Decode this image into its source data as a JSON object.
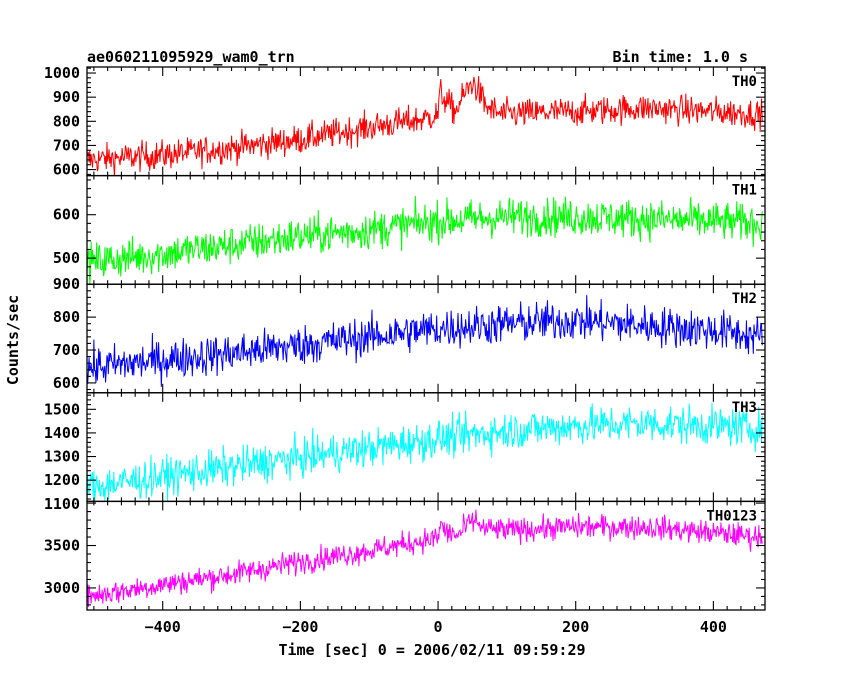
{
  "chart_data": {
    "type": "line",
    "title": "ae060211095929_wam0_trn",
    "subtitle": "Bin time: 1.0 s",
    "xlabel": "Time [sec] 0 = 2006/02/11 09:59:29",
    "ylabel": "Counts/sec",
    "xlim": [
      -510,
      475
    ],
    "x_ticks": [
      -400,
      -200,
      0,
      200,
      400
    ],
    "x_tick_labels": [
      "−400",
      "−200",
      "0",
      "200",
      "400"
    ],
    "bin_time": 1.0,
    "grid": false,
    "panels": [
      {
        "name": "TH0",
        "color": "#ff0000",
        "ylim": [
          575,
          1025
        ],
        "yticks": [
          600,
          700,
          800,
          900,
          1000
        ],
        "ytick_labels": [
          "600",
          "700",
          "800",
          "900",
          "1000"
        ],
        "noise": 30,
        "trend": [
          [
            -510,
            640
          ],
          [
            -400,
            660
          ],
          [
            -300,
            690
          ],
          [
            -200,
            725
          ],
          [
            -100,
            775
          ],
          [
            -20,
            810
          ],
          [
            0,
            830
          ],
          [
            3,
            920
          ],
          [
            10,
            890
          ],
          [
            25,
            840
          ],
          [
            40,
            920
          ],
          [
            50,
            960
          ],
          [
            58,
            930
          ],
          [
            70,
            860
          ],
          [
            90,
            830
          ],
          [
            200,
            840
          ],
          [
            300,
            855
          ],
          [
            400,
            840
          ],
          [
            470,
            830
          ]
        ]
      },
      {
        "name": "TH1",
        "color": "#00ff00",
        "ylim": [
          440,
          690
        ],
        "yticks": [
          500,
          600
        ],
        "ytick_labels": [
          "500",
          "600"
        ],
        "noise": 22,
        "trend": [
          [
            -510,
            490
          ],
          [
            -400,
            510
          ],
          [
            -300,
            530
          ],
          [
            -200,
            550
          ],
          [
            -100,
            565
          ],
          [
            0,
            585
          ],
          [
            100,
            595
          ],
          [
            200,
            595
          ],
          [
            300,
            590
          ],
          [
            400,
            585
          ],
          [
            470,
            580
          ]
        ]
      },
      {
        "name": "TH2",
        "color": "#0000ff",
        "ylim": [
          570,
          900
        ],
        "yticks": [
          600,
          700,
          800,
          900
        ],
        "ytick_labels": [
          "600",
          "700",
          "800",
          "900"
        ],
        "noise": 30,
        "trend": [
          [
            -510,
            645
          ],
          [
            -400,
            670
          ],
          [
            -300,
            690
          ],
          [
            -200,
            715
          ],
          [
            -100,
            740
          ],
          [
            0,
            765
          ],
          [
            100,
            780
          ],
          [
            200,
            790
          ],
          [
            300,
            775
          ],
          [
            400,
            760
          ],
          [
            470,
            740
          ]
        ]
      },
      {
        "name": "TH3",
        "color": "#00ffff",
        "ylim": [
          1110,
          1570
        ],
        "yticks": [
          1100,
          1200,
          1300,
          1400,
          1500
        ],
        "ytick_labels": [
          "1100",
          "1200",
          "1300",
          "1400",
          "1500"
        ],
        "noise": 40,
        "trend": [
          [
            -510,
            1170
          ],
          [
            -400,
            1215
          ],
          [
            -300,
            1255
          ],
          [
            -200,
            1295
          ],
          [
            -100,
            1335
          ],
          [
            0,
            1375
          ],
          [
            100,
            1410
          ],
          [
            200,
            1430
          ],
          [
            300,
            1440
          ],
          [
            400,
            1430
          ],
          [
            470,
            1420
          ]
        ]
      },
      {
        "name": "TH0123",
        "color": "#ff00ff",
        "ylim": [
          2740,
          4020
        ],
        "yticks": [
          3000,
          3500
        ],
        "ytick_labels": [
          "3000",
          "3500"
        ],
        "noise": 70,
        "trend": [
          [
            -510,
            2900
          ],
          [
            -400,
            3040
          ],
          [
            -300,
            3160
          ],
          [
            -200,
            3310
          ],
          [
            -100,
            3440
          ],
          [
            -20,
            3560
          ],
          [
            0,
            3590
          ],
          [
            4,
            3760
          ],
          [
            12,
            3650
          ],
          [
            30,
            3620
          ],
          [
            45,
            3760
          ],
          [
            55,
            3800
          ],
          [
            65,
            3700
          ],
          [
            100,
            3680
          ],
          [
            200,
            3720
          ],
          [
            300,
            3720
          ],
          [
            400,
            3650
          ],
          [
            470,
            3600
          ]
        ]
      }
    ]
  }
}
